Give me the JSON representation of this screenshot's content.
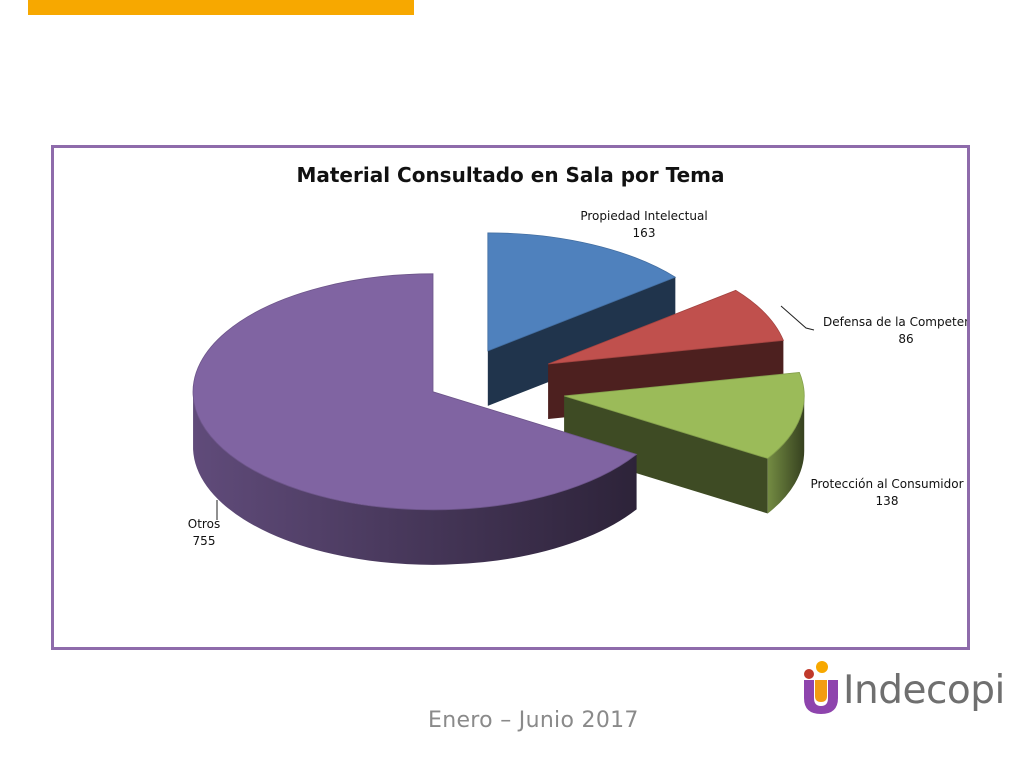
{
  "slide": {
    "footer_period": "Enero – Junio 2017",
    "logo_text": "Indecopi",
    "accent_color": "#f7a800",
    "frame_color": "#8e6bab"
  },
  "chart_data": {
    "type": "pie",
    "style": "3d-exploded",
    "title": "Material Consultado en Sala por Tema",
    "slices": [
      {
        "label": "Propiedad Intelectual",
        "value": 163,
        "color": "#4f81bd"
      },
      {
        "label": "Defensa de la Competencia",
        "value": 86,
        "color": "#c0504d"
      },
      {
        "label": "Protección al Consumidor",
        "value": 138,
        "color": "#9bbb59"
      },
      {
        "label": "Otros",
        "value": 755,
        "color": "#8064a2"
      }
    ]
  }
}
